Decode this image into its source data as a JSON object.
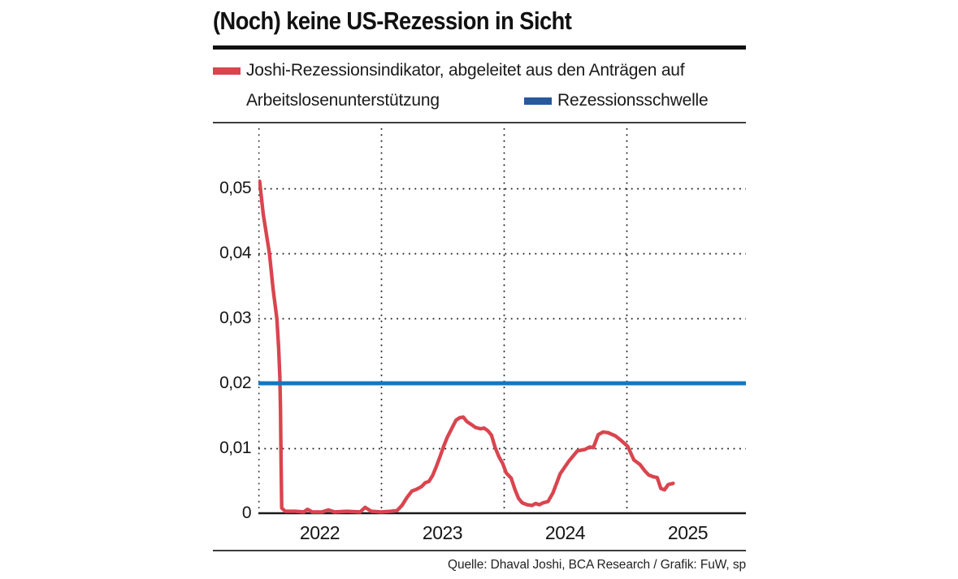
{
  "title": "(Noch) keine US-Rezession in Sicht",
  "legend": {
    "series1_line1": "Joshi-Rezessionsindikator, abgeleitet aus den Anträgen auf",
    "series1_line2": "Arbeitslosenunterstützung",
    "series2_label": "Rezessionsschwelle"
  },
  "source": "Quelle: Dhaval Joshi, BCA Research / Grafik: FuW, sp",
  "colors": {
    "indicator_red": "#d9454f",
    "threshold_blue": "#1577bd",
    "legend_swatch_red": "#d9454f",
    "legend_swatch_blue": "#27599b",
    "grid_dots": "#1a1a1a",
    "axis_line": "#1a1a1a"
  },
  "chart_data": {
    "type": "line",
    "title": "(Noch) keine US-Rezession in Sicht",
    "xlabel": "",
    "ylabel": "",
    "grid": "dotted",
    "legend_position": "top",
    "x_ticks": [
      "2022",
      "2023",
      "2024",
      "2025"
    ],
    "x_tick_years": [
      2022,
      2023,
      2024,
      2025
    ],
    "y_ticks": [
      "0,05",
      "0,04",
      "0,03",
      "0,02",
      "0,01",
      "0"
    ],
    "y_tick_values": [
      0.05,
      0.04,
      0.03,
      0.02,
      0.01,
      0
    ],
    "xlim_years": [
      2022.0,
      2025.97
    ],
    "ylim": [
      0,
      0.059
    ],
    "series": [
      {
        "name": "Joshi-Rezessionsindikator, abgeleitet aus den Anträgen auf Arbeitslosenunterstützung",
        "type": "line",
        "color": "#d9454f",
        "points": [
          [
            2022.01,
            0.0511
          ],
          [
            2022.04,
            0.046
          ],
          [
            2022.09,
            0.04
          ],
          [
            2022.12,
            0.0345
          ],
          [
            2022.15,
            0.03
          ],
          [
            2022.165,
            0.0255
          ],
          [
            2022.175,
            0.021
          ],
          [
            2022.18,
            0.016
          ],
          [
            2022.185,
            0.008
          ],
          [
            2022.19,
            0.0008
          ],
          [
            2022.22,
            0.0003
          ],
          [
            2022.3,
            0.0003
          ],
          [
            2022.37,
            0.0002
          ],
          [
            2022.4,
            0.0006
          ],
          [
            2022.44,
            0.0002
          ],
          [
            2022.52,
            0.0002
          ],
          [
            2022.57,
            0.0005
          ],
          [
            2022.62,
            0.0002
          ],
          [
            2022.72,
            0.0003
          ],
          [
            2022.83,
            0.0002
          ],
          [
            2022.87,
            0.0009
          ],
          [
            2022.92,
            0.0003
          ],
          [
            2023.0,
            0.0002
          ],
          [
            2023.08,
            0.0003
          ],
          [
            2023.13,
            0.0004
          ],
          [
            2023.17,
            0.0012
          ],
          [
            2023.21,
            0.0024
          ],
          [
            2023.25,
            0.0034
          ],
          [
            2023.29,
            0.0037
          ],
          [
            2023.33,
            0.0041
          ],
          [
            2023.36,
            0.0047
          ],
          [
            2023.39,
            0.0049
          ],
          [
            2023.42,
            0.0058
          ],
          [
            2023.45,
            0.0072
          ],
          [
            2023.48,
            0.0087
          ],
          [
            2023.51,
            0.0103
          ],
          [
            2023.54,
            0.0117
          ],
          [
            2023.58,
            0.0132
          ],
          [
            2023.61,
            0.0143
          ],
          [
            2023.64,
            0.0147
          ],
          [
            2023.67,
            0.0148
          ],
          [
            2023.7,
            0.0141
          ],
          [
            2023.74,
            0.0136
          ],
          [
            2023.77,
            0.0132
          ],
          [
            2023.81,
            0.013
          ],
          [
            2023.84,
            0.0131
          ],
          [
            2023.87,
            0.0127
          ],
          [
            2023.9,
            0.012
          ],
          [
            2023.93,
            0.0101
          ],
          [
            2023.96,
            0.0087
          ],
          [
            2023.99,
            0.0077
          ],
          [
            2024.02,
            0.0062
          ],
          [
            2024.06,
            0.0054
          ],
          [
            2024.09,
            0.0037
          ],
          [
            2024.12,
            0.0023
          ],
          [
            2024.15,
            0.0016
          ],
          [
            2024.19,
            0.0013
          ],
          [
            2024.23,
            0.0012
          ],
          [
            2024.26,
            0.0015
          ],
          [
            2024.29,
            0.0013
          ],
          [
            2024.32,
            0.0016
          ],
          [
            2024.36,
            0.0018
          ],
          [
            2024.4,
            0.0031
          ],
          [
            2024.46,
            0.0061
          ],
          [
            2024.53,
            0.008
          ],
          [
            2024.6,
            0.0096
          ],
          [
            2024.66,
            0.0098
          ],
          [
            2024.7,
            0.0102
          ],
          [
            2024.73,
            0.0101
          ],
          [
            2024.77,
            0.0121
          ],
          [
            2024.81,
            0.0125
          ],
          [
            2024.85,
            0.0124
          ],
          [
            2024.91,
            0.0119
          ],
          [
            2024.95,
            0.0113
          ],
          [
            2025.01,
            0.0103
          ],
          [
            2025.06,
            0.0082
          ],
          [
            2025.11,
            0.0075
          ],
          [
            2025.15,
            0.0065
          ],
          [
            2025.18,
            0.0059
          ],
          [
            2025.22,
            0.0056
          ],
          [
            2025.25,
            0.0055
          ],
          [
            2025.28,
            0.0038
          ],
          [
            2025.31,
            0.0036
          ],
          [
            2025.34,
            0.0044
          ],
          [
            2025.38,
            0.0046
          ]
        ]
      },
      {
        "name": "Rezessionsschwelle",
        "type": "hline",
        "color": "#1577bd",
        "value": 0.02
      }
    ]
  }
}
